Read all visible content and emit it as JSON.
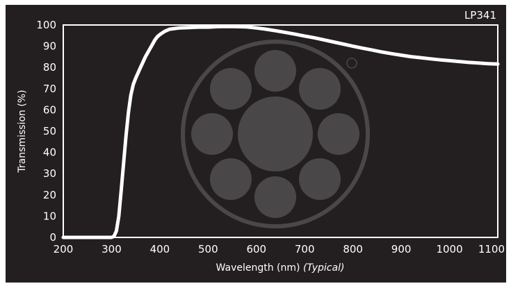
{
  "chart_data": {
    "type": "line",
    "title": "LP341",
    "xlabel": "Wavelength (nm)",
    "xlabel_note": "(Typical)",
    "ylabel": "Transmission (%)",
    "xlim": [
      200,
      1100
    ],
    "ylim": [
      0,
      100
    ],
    "x_ticks": [
      200,
      300,
      400,
      500,
      600,
      700,
      800,
      900,
      1000,
      1100
    ],
    "y_ticks": [
      0,
      10,
      20,
      30,
      40,
      50,
      60,
      70,
      80,
      90,
      100
    ],
    "grid": false,
    "legend": "none",
    "series": [
      {
        "color": "#ffffff",
        "x": [
          200,
          250,
          300,
          305,
          310,
          315,
          320,
          325,
          330,
          335,
          340,
          345,
          350,
          360,
          370,
          380,
          385,
          390,
          395,
          400,
          410,
          420,
          440,
          460,
          480,
          500,
          520,
          540,
          560,
          580,
          600,
          620,
          640,
          660,
          680,
          700,
          720,
          740,
          760,
          780,
          800,
          820,
          840,
          860,
          880,
          900,
          920,
          940,
          960,
          980,
          1000,
          1020,
          1040,
          1060,
          1080,
          1100
        ],
        "y": [
          0,
          0,
          0,
          0.5,
          3,
          10,
          22,
          35,
          48,
          59,
          67,
          72,
          75,
          80,
          85,
          89,
          91,
          93,
          94.5,
          95.5,
          97,
          98,
          98.6,
          98.8,
          99,
          99,
          99.2,
          99.3,
          99.2,
          99.1,
          98.6,
          98,
          97.3,
          96.5,
          95.7,
          94.8,
          94,
          93,
          92,
          91,
          90,
          89.1,
          88.2,
          87.3,
          86.5,
          85.8,
          85.1,
          84.6,
          84.1,
          83.6,
          83.2,
          82.8,
          82.4,
          82.1,
          81.8,
          81.6
        ]
      }
    ]
  },
  "colors": {
    "background": "#231f20",
    "axes": "#ffffff",
    "curve": "#ffffff",
    "watermark": "#4a4748"
  }
}
